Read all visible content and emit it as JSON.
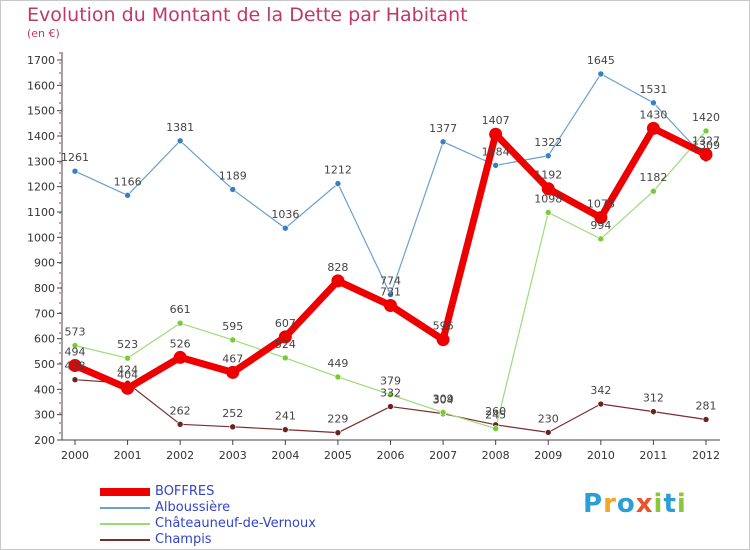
{
  "title": "Evolution du Montant de la Dette par Habitant",
  "unit": "(en €)",
  "logo": [
    "P",
    "r",
    "o",
    "x",
    "i",
    "t",
    "i"
  ],
  "logo_colors": [
    "#2a9fd6",
    "#f5a623",
    "#2a9fd6",
    "#e8542f",
    "#8cc63f",
    "#2a9fd6",
    "#8cc63f"
  ],
  "chart_data": {
    "type": "line",
    "x": [
      "2000",
      "2001",
      "2002",
      "2003",
      "2004",
      "2005",
      "2006",
      "2007",
      "2008",
      "2009",
      "2010",
      "2011",
      "2012"
    ],
    "ylim": [
      200,
      1700
    ],
    "yticks": [
      200,
      300,
      400,
      500,
      600,
      700,
      800,
      900,
      1000,
      1100,
      1200,
      1300,
      1400,
      1500,
      1600,
      1700
    ],
    "grid": false,
    "legend": "bottom-left",
    "series": [
      {
        "name": "BOFFRES",
        "color": "#ee0000",
        "width": 7,
        "marker": "#ee0000",
        "values": [
          494,
          404,
          526,
          467,
          607,
          828,
          731,
          596,
          1407,
          1192,
          1078,
          1430,
          1327
        ]
      },
      {
        "name": "Alboussière",
        "color": "#6aa0d0",
        "width": 1.2,
        "marker": "#3a7fc0",
        "values": [
          1261,
          1166,
          1381,
          1189,
          1036,
          1212,
          774,
          1377,
          1284,
          1322,
          1645,
          1531,
          1309
        ]
      },
      {
        "name": "Châteauneuf-de-Vernoux",
        "color": "#99dd77",
        "width": 1.2,
        "marker": "#77cc33",
        "values": [
          573,
          523,
          661,
          595,
          524,
          449,
          379,
          309,
          245,
          1098,
          994,
          1182,
          1420
        ]
      },
      {
        "name": "Champis",
        "color": "#7a2e2e",
        "width": 1.2,
        "marker": "#6a2222",
        "values": [
          438,
          424,
          262,
          252,
          241,
          229,
          332,
          304,
          260,
          230,
          342,
          312,
          281
        ]
      }
    ]
  }
}
